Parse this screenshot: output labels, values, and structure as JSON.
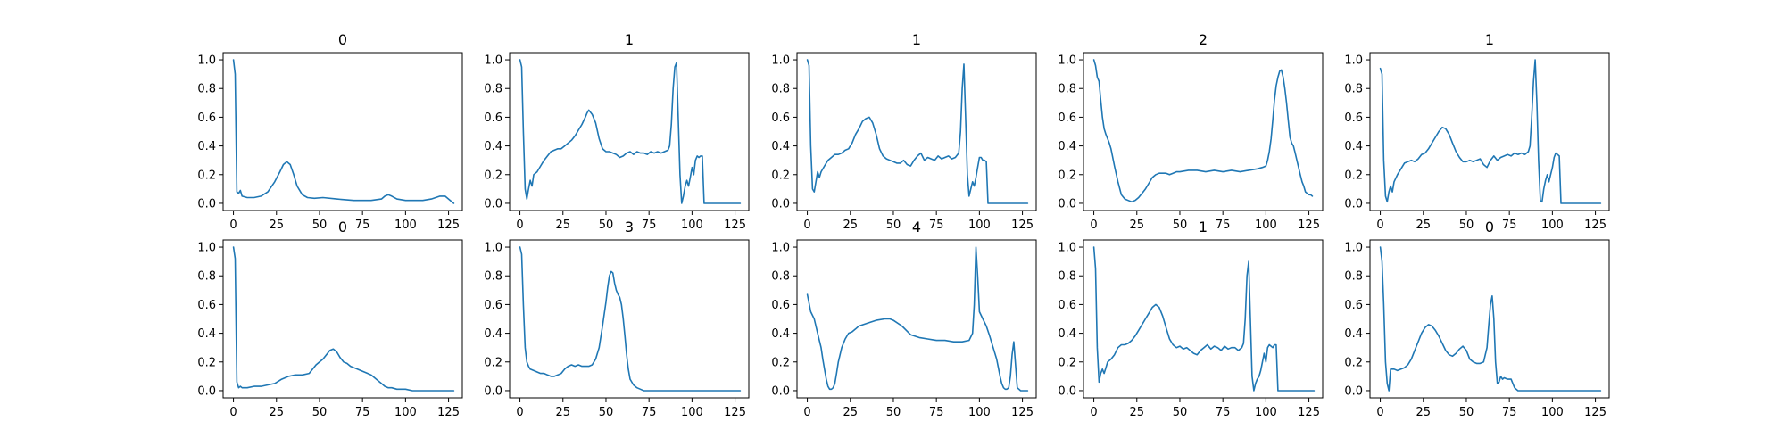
{
  "colors": {
    "series": "#1f77b4",
    "axes": "#000000",
    "background": "#ffffff"
  },
  "chart_data": [
    {
      "type": "line",
      "title": "0",
      "xlim": [
        -6,
        133
      ],
      "ylim": [
        -0.05,
        1.05
      ],
      "xticks": [
        0,
        25,
        50,
        75,
        100,
        125
      ],
      "yticks": [
        0.0,
        0.2,
        0.4,
        0.6,
        0.8,
        1.0
      ],
      "x": [
        0,
        1,
        2,
        3,
        4,
        5,
        8,
        12,
        16,
        20,
        24,
        27,
        29,
        31,
        33,
        35,
        37,
        40,
        43,
        47,
        52,
        60,
        70,
        80,
        86,
        88,
        90,
        92,
        95,
        100,
        105,
        110,
        115,
        120,
        123,
        126,
        128
      ],
      "y": [
        1.0,
        0.9,
        0.08,
        0.07,
        0.09,
        0.05,
        0.04,
        0.04,
        0.05,
        0.08,
        0.15,
        0.22,
        0.27,
        0.29,
        0.27,
        0.2,
        0.12,
        0.06,
        0.04,
        0.035,
        0.04,
        0.03,
        0.02,
        0.02,
        0.03,
        0.05,
        0.06,
        0.05,
        0.03,
        0.02,
        0.02,
        0.02,
        0.03,
        0.05,
        0.05,
        0.02,
        0.0
      ]
    },
    {
      "type": "line",
      "title": "1",
      "xlim": [
        -6,
        133
      ],
      "ylim": [
        -0.05,
        1.05
      ],
      "xticks": [
        0,
        25,
        50,
        75,
        100,
        125
      ],
      "yticks": [
        0.0,
        0.2,
        0.4,
        0.6,
        0.8,
        1.0
      ],
      "x": [
        0,
        1,
        2,
        3,
        4,
        5,
        6,
        7,
        8,
        10,
        12,
        14,
        16,
        18,
        20,
        22,
        24,
        26,
        28,
        30,
        32,
        34,
        36,
        38,
        39,
        40,
        42,
        44,
        46,
        48,
        50,
        52,
        54,
        56,
        58,
        60,
        62,
        64,
        66,
        68,
        70,
        72,
        74,
        76,
        78,
        80,
        82,
        84,
        86,
        87,
        88,
        89,
        90,
        91,
        92,
        93,
        94,
        95,
        96,
        97,
        98,
        99,
        100,
        101,
        102,
        103,
        104,
        105,
        106,
        107,
        108,
        128
      ],
      "y": [
        1.0,
        0.95,
        0.5,
        0.1,
        0.03,
        0.1,
        0.16,
        0.12,
        0.2,
        0.22,
        0.26,
        0.3,
        0.33,
        0.36,
        0.37,
        0.38,
        0.38,
        0.4,
        0.42,
        0.44,
        0.47,
        0.51,
        0.55,
        0.6,
        0.63,
        0.65,
        0.62,
        0.56,
        0.45,
        0.38,
        0.36,
        0.36,
        0.35,
        0.34,
        0.32,
        0.33,
        0.35,
        0.36,
        0.34,
        0.36,
        0.35,
        0.35,
        0.34,
        0.36,
        0.35,
        0.36,
        0.35,
        0.36,
        0.37,
        0.4,
        0.55,
        0.8,
        0.95,
        0.98,
        0.6,
        0.2,
        0.0,
        0.05,
        0.12,
        0.16,
        0.12,
        0.18,
        0.25,
        0.2,
        0.3,
        0.33,
        0.32,
        0.33,
        0.33,
        0.0,
        0.0,
        0.0
      ]
    },
    {
      "type": "line",
      "title": "1",
      "xlim": [
        -6,
        133
      ],
      "ylim": [
        -0.05,
        1.05
      ],
      "xticks": [
        0,
        25,
        50,
        75,
        100,
        125
      ],
      "yticks": [
        0.0,
        0.2,
        0.4,
        0.6,
        0.8,
        1.0
      ],
      "x": [
        0,
        1,
        2,
        3,
        4,
        5,
        6,
        7,
        8,
        10,
        12,
        14,
        16,
        18,
        20,
        22,
        24,
        26,
        28,
        30,
        32,
        34,
        36,
        38,
        40,
        42,
        44,
        46,
        48,
        50,
        52,
        54,
        56,
        58,
        60,
        62,
        64,
        66,
        68,
        70,
        72,
        74,
        76,
        78,
        80,
        82,
        84,
        86,
        88,
        89,
        90,
        91,
        92,
        93,
        94,
        95,
        96,
        97,
        98,
        99,
        100,
        101,
        102,
        103,
        104,
        105,
        106,
        107,
        108,
        128
      ],
      "y": [
        1.0,
        0.96,
        0.4,
        0.1,
        0.08,
        0.15,
        0.22,
        0.18,
        0.22,
        0.26,
        0.3,
        0.32,
        0.34,
        0.34,
        0.35,
        0.37,
        0.38,
        0.42,
        0.48,
        0.52,
        0.57,
        0.59,
        0.6,
        0.56,
        0.48,
        0.38,
        0.33,
        0.31,
        0.3,
        0.29,
        0.28,
        0.28,
        0.3,
        0.27,
        0.26,
        0.3,
        0.33,
        0.35,
        0.3,
        0.32,
        0.31,
        0.3,
        0.33,
        0.31,
        0.32,
        0.33,
        0.31,
        0.32,
        0.35,
        0.5,
        0.8,
        0.97,
        0.6,
        0.2,
        0.05,
        0.1,
        0.15,
        0.12,
        0.18,
        0.25,
        0.32,
        0.32,
        0.3,
        0.3,
        0.29,
        0.0,
        0.0,
        0.0,
        0.0,
        0.0
      ]
    },
    {
      "type": "line",
      "title": "2",
      "xlim": [
        -6,
        133
      ],
      "ylim": [
        -0.05,
        1.05
      ],
      "xticks": [
        0,
        25,
        50,
        75,
        100,
        125
      ],
      "yticks": [
        0.0,
        0.2,
        0.4,
        0.6,
        0.8,
        1.0
      ],
      "x": [
        0,
        1,
        2,
        3,
        4,
        5,
        6,
        7,
        8,
        9,
        10,
        12,
        14,
        16,
        18,
        20,
        22,
        24,
        26,
        28,
        30,
        32,
        34,
        36,
        38,
        40,
        42,
        44,
        46,
        48,
        50,
        55,
        60,
        65,
        70,
        75,
        80,
        85,
        90,
        95,
        98,
        100,
        101,
        102,
        103,
        104,
        105,
        106,
        107,
        108,
        109,
        110,
        111,
        112,
        113,
        114,
        115,
        116,
        117,
        118,
        119,
        120,
        121,
        122,
        123,
        124,
        125,
        126,
        127
      ],
      "y": [
        1.0,
        0.96,
        0.88,
        0.85,
        0.72,
        0.6,
        0.52,
        0.48,
        0.45,
        0.42,
        0.38,
        0.26,
        0.15,
        0.06,
        0.03,
        0.02,
        0.01,
        0.02,
        0.04,
        0.07,
        0.1,
        0.14,
        0.18,
        0.2,
        0.21,
        0.21,
        0.21,
        0.2,
        0.21,
        0.22,
        0.22,
        0.23,
        0.23,
        0.22,
        0.23,
        0.22,
        0.23,
        0.22,
        0.23,
        0.24,
        0.25,
        0.26,
        0.3,
        0.36,
        0.45,
        0.58,
        0.72,
        0.82,
        0.88,
        0.92,
        0.93,
        0.88,
        0.8,
        0.7,
        0.58,
        0.46,
        0.42,
        0.4,
        0.35,
        0.3,
        0.25,
        0.2,
        0.15,
        0.12,
        0.08,
        0.07,
        0.06,
        0.06,
        0.05
      ]
    },
    {
      "type": "line",
      "title": "1",
      "xlim": [
        -6,
        133
      ],
      "ylim": [
        -0.05,
        1.05
      ],
      "xticks": [
        0,
        25,
        50,
        75,
        100,
        125
      ],
      "yticks": [
        0.0,
        0.2,
        0.4,
        0.6,
        0.8,
        1.0
      ],
      "x": [
        0,
        1,
        2,
        3,
        4,
        5,
        6,
        7,
        8,
        10,
        12,
        14,
        16,
        18,
        20,
        22,
        24,
        26,
        28,
        30,
        32,
        34,
        36,
        38,
        40,
        42,
        44,
        46,
        48,
        50,
        52,
        54,
        56,
        58,
        60,
        62,
        64,
        66,
        68,
        70,
        72,
        74,
        76,
        78,
        80,
        82,
        84,
        86,
        87,
        88,
        89,
        90,
        91,
        92,
        93,
        94,
        95,
        96,
        97,
        98,
        99,
        100,
        101,
        102,
        103,
        104,
        105,
        106,
        128
      ],
      "y": [
        0.94,
        0.9,
        0.3,
        0.05,
        0.01,
        0.08,
        0.12,
        0.08,
        0.15,
        0.2,
        0.24,
        0.28,
        0.29,
        0.3,
        0.29,
        0.31,
        0.34,
        0.35,
        0.38,
        0.42,
        0.46,
        0.5,
        0.53,
        0.52,
        0.48,
        0.42,
        0.36,
        0.32,
        0.29,
        0.29,
        0.3,
        0.29,
        0.3,
        0.31,
        0.27,
        0.25,
        0.3,
        0.33,
        0.3,
        0.32,
        0.33,
        0.34,
        0.33,
        0.35,
        0.34,
        0.35,
        0.34,
        0.36,
        0.4,
        0.6,
        0.85,
        1.0,
        0.7,
        0.3,
        0.02,
        0.01,
        0.1,
        0.16,
        0.2,
        0.15,
        0.2,
        0.25,
        0.32,
        0.35,
        0.34,
        0.33,
        0.0,
        0.0,
        0.0
      ]
    },
    {
      "type": "line",
      "title": "0",
      "xlim": [
        -6,
        133
      ],
      "ylim": [
        -0.05,
        1.05
      ],
      "xticks": [
        0,
        25,
        50,
        75,
        100,
        125
      ],
      "yticks": [
        0.0,
        0.2,
        0.4,
        0.6,
        0.8,
        1.0
      ],
      "x": [
        0,
        1,
        2,
        3,
        4,
        5,
        8,
        12,
        16,
        20,
        24,
        28,
        32,
        36,
        40,
        44,
        46,
        48,
        50,
        52,
        54,
        56,
        58,
        60,
        62,
        64,
        66,
        68,
        70,
        72,
        74,
        76,
        78,
        80,
        82,
        84,
        86,
        88,
        90,
        92,
        95,
        98,
        100,
        104,
        108,
        112,
        116,
        120,
        124,
        128
      ],
      "y": [
        1.0,
        0.92,
        0.06,
        0.02,
        0.03,
        0.02,
        0.02,
        0.03,
        0.03,
        0.04,
        0.05,
        0.08,
        0.1,
        0.11,
        0.11,
        0.12,
        0.15,
        0.18,
        0.2,
        0.22,
        0.25,
        0.28,
        0.29,
        0.27,
        0.23,
        0.2,
        0.19,
        0.17,
        0.16,
        0.15,
        0.14,
        0.13,
        0.12,
        0.11,
        0.09,
        0.07,
        0.05,
        0.03,
        0.02,
        0.02,
        0.01,
        0.01,
        0.01,
        0.0,
        0.0,
        0.0,
        0.0,
        0.0,
        0.0,
        0.0
      ]
    },
    {
      "type": "line",
      "title": "3",
      "xlim": [
        -6,
        133
      ],
      "ylim": [
        -0.05,
        1.05
      ],
      "xticks": [
        0,
        25,
        50,
        75,
        100,
        125
      ],
      "yticks": [
        0.0,
        0.2,
        0.4,
        0.6,
        0.8,
        1.0
      ],
      "x": [
        0,
        1,
        2,
        3,
        4,
        5,
        6,
        8,
        10,
        12,
        14,
        16,
        18,
        20,
        22,
        24,
        26,
        28,
        30,
        32,
        34,
        36,
        38,
        40,
        42,
        44,
        46,
        48,
        50,
        51,
        52,
        53,
        54,
        55,
        56,
        57,
        58,
        59,
        60,
        61,
        62,
        63,
        64,
        66,
        68,
        70,
        72,
        75,
        80,
        90,
        100,
        110,
        120,
        128
      ],
      "y": [
        1.0,
        0.95,
        0.6,
        0.3,
        0.2,
        0.17,
        0.15,
        0.14,
        0.13,
        0.12,
        0.12,
        0.11,
        0.1,
        0.1,
        0.11,
        0.12,
        0.15,
        0.17,
        0.18,
        0.17,
        0.18,
        0.17,
        0.17,
        0.17,
        0.18,
        0.22,
        0.3,
        0.45,
        0.62,
        0.72,
        0.8,
        0.83,
        0.82,
        0.75,
        0.7,
        0.67,
        0.65,
        0.6,
        0.5,
        0.38,
        0.25,
        0.15,
        0.08,
        0.04,
        0.02,
        0.01,
        0.0,
        0.0,
        0.0,
        0.0,
        0.0,
        0.0,
        0.0,
        0.0
      ]
    },
    {
      "type": "line",
      "title": "4",
      "xlim": [
        -6,
        133
      ],
      "ylim": [
        -0.05,
        1.05
      ],
      "xticks": [
        0,
        25,
        50,
        75,
        100,
        125
      ],
      "yticks": [
        0.0,
        0.2,
        0.4,
        0.6,
        0.8,
        1.0
      ],
      "x": [
        0,
        2,
        4,
        6,
        8,
        9,
        10,
        11,
        12,
        13,
        14,
        15,
        16,
        17,
        18,
        20,
        22,
        24,
        26,
        28,
        30,
        35,
        40,
        45,
        48,
        50,
        55,
        60,
        65,
        70,
        75,
        80,
        85,
        90,
        94,
        96,
        97,
        98,
        99,
        100,
        102,
        104,
        106,
        108,
        110,
        111,
        112,
        113,
        114,
        115,
        116,
        117,
        118,
        119,
        120,
        122,
        124,
        126,
        128
      ],
      "y": [
        0.67,
        0.55,
        0.5,
        0.4,
        0.3,
        0.22,
        0.15,
        0.08,
        0.03,
        0.01,
        0.01,
        0.02,
        0.05,
        0.12,
        0.2,
        0.3,
        0.36,
        0.4,
        0.41,
        0.43,
        0.45,
        0.47,
        0.49,
        0.5,
        0.5,
        0.49,
        0.45,
        0.39,
        0.37,
        0.36,
        0.35,
        0.35,
        0.34,
        0.34,
        0.35,
        0.4,
        0.6,
        1.0,
        0.8,
        0.55,
        0.5,
        0.45,
        0.38,
        0.3,
        0.22,
        0.16,
        0.1,
        0.05,
        0.02,
        0.01,
        0.01,
        0.02,
        0.1,
        0.25,
        0.34,
        0.02,
        0.0,
        0.0,
        0.0
      ]
    },
    {
      "type": "line",
      "title": "1",
      "xlim": [
        -6,
        133
      ],
      "ylim": [
        -0.05,
        1.05
      ],
      "xticks": [
        0,
        25,
        50,
        75,
        100,
        125
      ],
      "yticks": [
        0.0,
        0.2,
        0.4,
        0.6,
        0.8,
        1.0
      ],
      "x": [
        0,
        1,
        2,
        3,
        4,
        5,
        6,
        7,
        8,
        10,
        12,
        14,
        16,
        18,
        20,
        22,
        24,
        26,
        28,
        30,
        32,
        34,
        36,
        38,
        40,
        42,
        44,
        46,
        48,
        50,
        52,
        54,
        56,
        58,
        60,
        62,
        64,
        66,
        68,
        70,
        72,
        74,
        76,
        78,
        80,
        82,
        84,
        86,
        87,
        88,
        89,
        90,
        91,
        92,
        93,
        94,
        95,
        96,
        97,
        98,
        99,
        100,
        101,
        102,
        103,
        104,
        105,
        106,
        107,
        108,
        110,
        120,
        128
      ],
      "y": [
        1.0,
        0.85,
        0.3,
        0.06,
        0.12,
        0.15,
        0.12,
        0.16,
        0.2,
        0.22,
        0.25,
        0.3,
        0.32,
        0.32,
        0.33,
        0.35,
        0.38,
        0.42,
        0.46,
        0.5,
        0.54,
        0.58,
        0.6,
        0.58,
        0.52,
        0.44,
        0.36,
        0.32,
        0.3,
        0.31,
        0.29,
        0.3,
        0.28,
        0.26,
        0.25,
        0.28,
        0.3,
        0.32,
        0.29,
        0.31,
        0.3,
        0.28,
        0.31,
        0.29,
        0.3,
        0.3,
        0.28,
        0.3,
        0.33,
        0.5,
        0.8,
        0.9,
        0.5,
        0.1,
        0.0,
        0.05,
        0.08,
        0.1,
        0.14,
        0.2,
        0.26,
        0.2,
        0.3,
        0.32,
        0.31,
        0.3,
        0.32,
        0.32,
        0.0,
        0.0,
        0.0,
        0.0,
        0.0
      ]
    },
    {
      "type": "line",
      "title": "0",
      "xlim": [
        -6,
        133
      ],
      "ylim": [
        -0.05,
        1.05
      ],
      "xticks": [
        0,
        25,
        50,
        75,
        100,
        125
      ],
      "yticks": [
        0.0,
        0.2,
        0.4,
        0.6,
        0.8,
        1.0
      ],
      "x": [
        0,
        1,
        2,
        3,
        4,
        5,
        6,
        8,
        10,
        12,
        14,
        16,
        18,
        20,
        22,
        24,
        26,
        28,
        30,
        32,
        34,
        36,
        38,
        40,
        42,
        44,
        46,
        48,
        50,
        52,
        54,
        56,
        58,
        60,
        62,
        63,
        64,
        65,
        66,
        67,
        68,
        69,
        70,
        71,
        72,
        74,
        76,
        78,
        80,
        90,
        100,
        110,
        120,
        128
      ],
      "y": [
        1.0,
        0.9,
        0.6,
        0.2,
        0.05,
        0.0,
        0.15,
        0.15,
        0.14,
        0.15,
        0.16,
        0.18,
        0.22,
        0.28,
        0.34,
        0.4,
        0.44,
        0.46,
        0.45,
        0.42,
        0.38,
        0.33,
        0.28,
        0.25,
        0.24,
        0.26,
        0.29,
        0.31,
        0.28,
        0.22,
        0.2,
        0.19,
        0.19,
        0.2,
        0.3,
        0.45,
        0.6,
        0.66,
        0.5,
        0.2,
        0.05,
        0.06,
        0.1,
        0.08,
        0.09,
        0.08,
        0.08,
        0.02,
        0.0,
        0.0,
        0.0,
        0.0,
        0.0,
        0.0
      ]
    }
  ]
}
